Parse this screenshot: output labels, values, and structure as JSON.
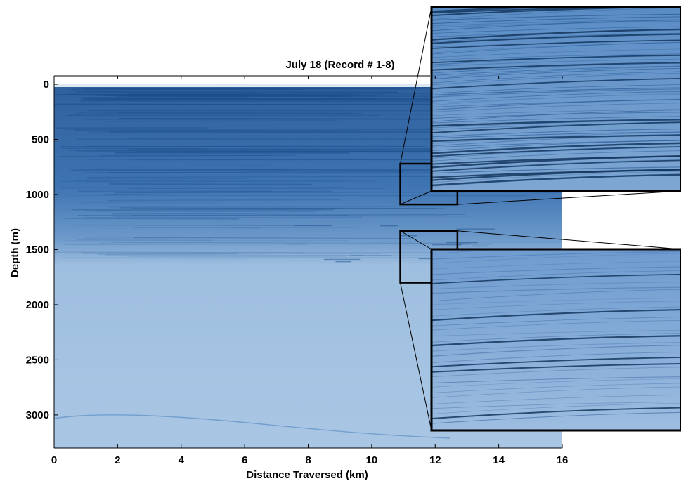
{
  "chart_data": {
    "type": "heatmap",
    "title": "July 18 (Record # 1-8)",
    "xlabel": "Distance Traversed (km)",
    "ylabel": "Depth (m)",
    "xlim": [
      0,
      16
    ],
    "ylim": [
      3300,
      0
    ],
    "x_ticks": [
      0,
      2,
      4,
      6,
      8,
      10,
      12,
      14,
      16
    ],
    "y_ticks": [
      0,
      500,
      1000,
      1500,
      2000,
      2500,
      3000
    ],
    "colors": {
      "deep_blue": "#1d4f8c",
      "mid_blue": "#4f86c0",
      "pale_blue": "#a9c6e4",
      "frame": "#000000"
    },
    "zoom_boxes": [
      {
        "x_range": [
          10.9,
          12.7
        ],
        "depth_range": [
          720,
          1090
        ]
      },
      {
        "x_range": [
          10.9,
          12.7
        ],
        "depth_range": [
          1330,
          1800
        ]
      }
    ],
    "insets": [
      {
        "source_box": 0
      },
      {
        "source_box": 1
      }
    ]
  }
}
